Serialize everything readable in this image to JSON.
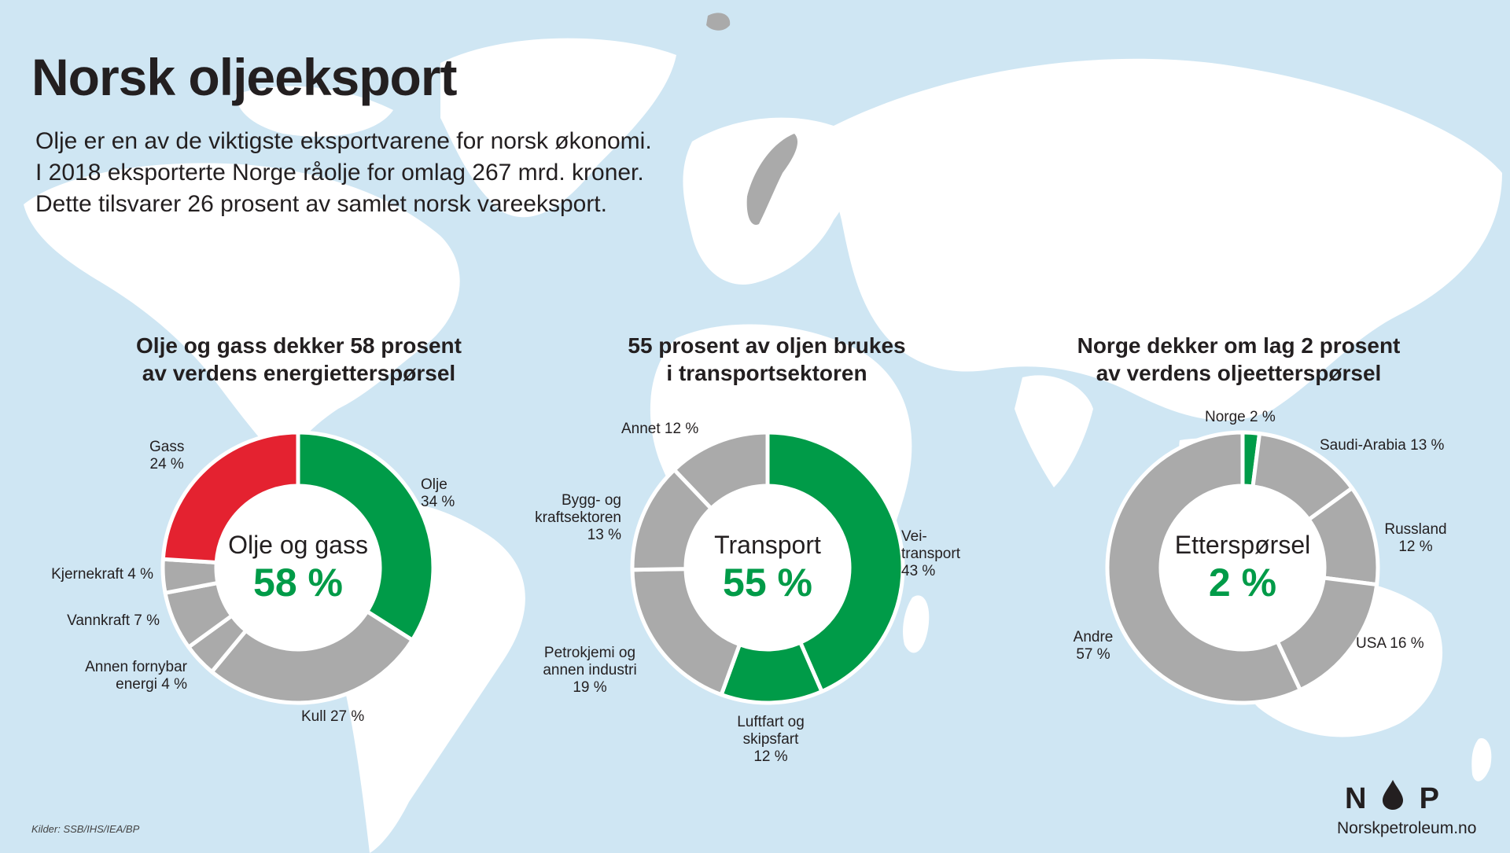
{
  "header": {
    "title": "Norsk oljeeksport",
    "intro": [
      "Olje er en av de viktigste eksportvarene for norsk økonomi.",
      "I 2018 eksporterte Norge råolje for omlag 267 mrd. kroner.",
      "Dette tilsvarer 26 prosent av samlet norsk vareeksport."
    ]
  },
  "colors": {
    "background": "#cfe6f3",
    "land": "#ffffff",
    "norway": "#aaaaaa",
    "green": "#009b48",
    "red": "#e42230",
    "grey": "#aaaaaa"
  },
  "chart_data": [
    {
      "type": "pie",
      "title_lines": [
        "Olje og gass dekker 58 prosent",
        "av verdens energietterspørsel"
      ],
      "center_label": "Olje og gass",
      "center_value": "58 %",
      "slices": [
        {
          "label": "Olje\n34 %",
          "value": 34,
          "color": "#009b48"
        },
        {
          "label": "Kull 27 %",
          "value": 27,
          "color": "#aaaaaa"
        },
        {
          "label": "Annen fornybar\nenergi 4 %",
          "value": 4,
          "color": "#aaaaaa"
        },
        {
          "label": "Vannkraft 7 %",
          "value": 7,
          "color": "#aaaaaa"
        },
        {
          "label": "Kjernekraft 4 %",
          "value": 4,
          "color": "#aaaaaa"
        },
        {
          "label": "Gass\n24 %",
          "value": 24,
          "color": "#e42230"
        }
      ]
    },
    {
      "type": "pie",
      "title_lines": [
        "55 prosent av oljen brukes",
        "i transportsektoren"
      ],
      "center_label": "Transport",
      "center_value": "55 %",
      "slices": [
        {
          "label": "Vei-\ntransport\n43 %",
          "value": 43,
          "color": "#009b48"
        },
        {
          "label": "Luftfart og\nskipsfart\n12 %",
          "value": 12,
          "color": "#009b48"
        },
        {
          "label": "Petrokjemi og\nannen industri\n19 %",
          "value": 19,
          "color": "#aaaaaa"
        },
        {
          "label": "Bygg- og\nkraftsektoren\n13 %",
          "value": 13,
          "color": "#aaaaaa"
        },
        {
          "label": "Annet 12 %",
          "value": 12,
          "color": "#aaaaaa"
        }
      ]
    },
    {
      "type": "pie",
      "title_lines": [
        "Norge dekker om lag 2 prosent",
        "av verdens oljeetterspørsel"
      ],
      "center_label": "Etterspørsel",
      "center_value": "2 %",
      "slices": [
        {
          "label": "Norge 2 %",
          "value": 2,
          "color": "#009b48"
        },
        {
          "label": "Saudi-Arabia 13 %",
          "value": 13,
          "color": "#aaaaaa"
        },
        {
          "label": "Russland\n12 %",
          "value": 12,
          "color": "#aaaaaa"
        },
        {
          "label": "USA 16 %",
          "value": 16,
          "color": "#aaaaaa"
        },
        {
          "label": "Andre\n57 %",
          "value": 57,
          "color": "#aaaaaa"
        }
      ]
    }
  ],
  "footer": {
    "sources": "Kilder: SSB/IHS/IEA/BP",
    "logo_left": "N",
    "logo_right": "P",
    "website": "Norskpetroleum.no"
  }
}
